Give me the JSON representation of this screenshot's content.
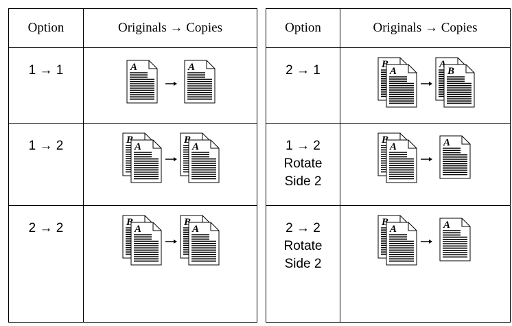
{
  "table": {
    "header": [
      "Option",
      "Originals → Copies",
      "Option",
      "Originals → Copies"
    ],
    "rows": [
      [
        {
          "option": [
            "1 → 1"
          ],
          "originals": [
            "A"
          ],
          "copies": [
            "A"
          ]
        },
        {
          "option": [
            "2 → 1"
          ],
          "originals": [
            "A",
            "B"
          ],
          "copies": [
            "B",
            "A"
          ]
        }
      ],
      [
        {
          "option": [
            "1 → 2"
          ],
          "originals": [
            "A",
            "B"
          ],
          "copies": [
            "A",
            "B"
          ]
        },
        {
          "option": [
            "1 → 2",
            "Rotate",
            "Side 2"
          ],
          "originals": [
            "A",
            "B"
          ],
          "copies": [
            "A"
          ]
        }
      ],
      [
        {
          "option": [
            "2 → 2"
          ],
          "originals": [
            "A",
            "B"
          ],
          "copies": [
            "A",
            "B"
          ]
        },
        {
          "option": [
            "2 → 2",
            "Rotate",
            "Side 2"
          ],
          "originals": [
            "A",
            "B"
          ],
          "copies": [
            "A"
          ]
        }
      ]
    ]
  }
}
